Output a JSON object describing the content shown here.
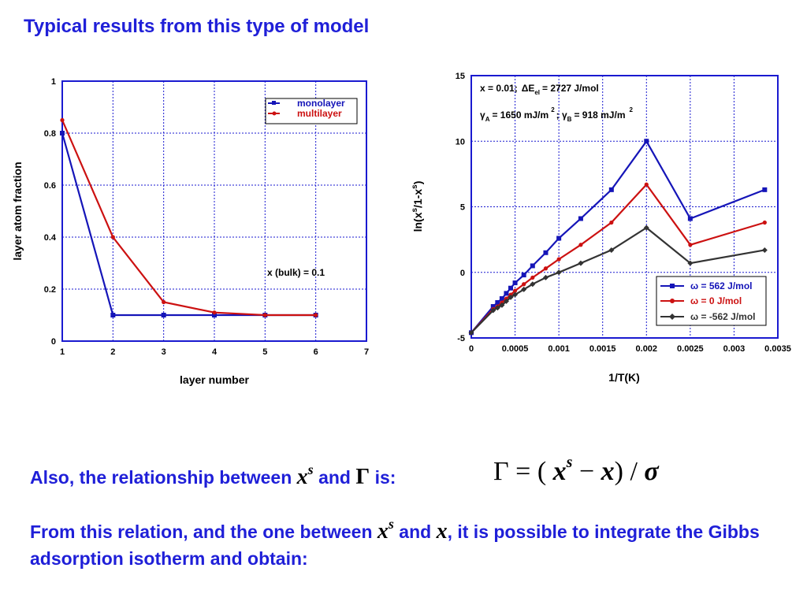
{
  "page": {
    "title": "Typical results from this type of model",
    "line1_prefix": "Also, the relationship between",
    "line1_var": "x",
    "line1_sup": "s",
    "line1_and": "and",
    "line1_gamma": "Γ",
    "line1_is": "is:",
    "equation": {
      "gamma": "Γ",
      "eq": "= (",
      "x": "x",
      "sup": "s",
      "minus": " − ",
      "x2": "x",
      "close": ")",
      "slash": " / ",
      "sigma": "σ"
    },
    "para_part1": "From this relation, and the one between",
    "para_var1": "x",
    "para_sup": "s",
    "para_and": "and",
    "para_var2": "x",
    "para_part2": ", it is possible to integrate the Gibbs adsorption isotherm and obtain:"
  },
  "chart_data": [
    {
      "type": "line",
      "xlabel": "layer number",
      "ylabel": "layer atom fraction",
      "xlim": [
        1,
        7
      ],
      "ylim": [
        0,
        1
      ],
      "xticks": [
        1,
        2,
        3,
        4,
        5,
        6,
        7
      ],
      "yticks": [
        0,
        0.2,
        0.4,
        0.6,
        0.8,
        1
      ],
      "ytick_labels": [
        "0",
        "0.2",
        "0.4",
        "0.6",
        "0.8",
        "1"
      ],
      "grid": true,
      "legend_position": "top-right",
      "annotation": "x (bulk) = 0.1",
      "series": [
        {
          "name": "monolayer",
          "color": "#1515b8",
          "marker": "square",
          "x": [
            1,
            2,
            3,
            4,
            5,
            6
          ],
          "y": [
            0.8,
            0.1,
            0.1,
            0.1,
            0.1,
            0.1
          ]
        },
        {
          "name": "multilayer",
          "color": "#cc1111",
          "marker": "circle",
          "x": [
            1,
            2,
            3,
            4,
            5,
            6
          ],
          "y": [
            0.85,
            0.4,
            0.15,
            0.11,
            0.1,
            0.1
          ]
        }
      ]
    },
    {
      "type": "line",
      "xlabel": "1/T(K)",
      "ylabel_parts": {
        "a": "ln(x",
        "b": "s",
        "c": "/1-x",
        "d": "s",
        "e": ")"
      },
      "xlim": [
        0,
        0.0035
      ],
      "ylim": [
        -5,
        15
      ],
      "xticks": [
        0,
        0.0005,
        0.001,
        0.0015,
        0.002,
        0.0025,
        0.003,
        0.0035
      ],
      "xtick_labels": [
        "0",
        "0.0005",
        "0.001",
        "0.0015",
        "0.002",
        "0.0025",
        "0.003",
        "0.0035"
      ],
      "yticks": [
        -5,
        0,
        5,
        10,
        15
      ],
      "ytick_labels": [
        "-5",
        "0",
        "5",
        "10",
        "15"
      ],
      "grid": true,
      "legend_position": "bottom-right",
      "annotation1": {
        "a": "x = 0.01;",
        "b": "ΔE",
        "c": "el",
        "d": "= 2727 J/mol"
      },
      "annotation2": {
        "a": "γ",
        "b": "A",
        "c": "= 1650 mJ/m",
        "d": "2",
        "e": "; γ",
        "f": "B",
        "g": "= 918 mJ/m",
        "h": "2"
      },
      "series": [
        {
          "name": "ω = 562 J/mol",
          "color": "#1515b8",
          "marker": "square",
          "x": [
            0,
            0.00025,
            0.0003,
            0.00035,
            0.0004,
            0.00045,
            0.0005,
            0.0006,
            0.0007,
            0.00085,
            0.001,
            0.00125,
            0.0016,
            0.002,
            0.0025,
            0.00335
          ],
          "y": [
            -4.6,
            -2.6,
            -2.3,
            -2.0,
            -1.6,
            -1.2,
            -0.8,
            -0.2,
            0.5,
            1.5,
            2.6,
            4.1,
            6.3,
            10.0,
            4.1,
            6.3
          ]
        },
        {
          "name": "ω = 0 J/mol",
          "color": "#cc1111",
          "marker": "circle",
          "x": [
            0,
            0.00025,
            0.0003,
            0.00035,
            0.0004,
            0.00045,
            0.0005,
            0.0006,
            0.0007,
            0.00085,
            0.001,
            0.00125,
            0.0016,
            0.002,
            0.0025,
            0.00335
          ],
          "y": [
            -4.6,
            -2.8,
            -2.6,
            -2.3,
            -2.0,
            -1.7,
            -1.4,
            -0.9,
            -0.4,
            0.3,
            1.0,
            2.1,
            3.8,
            6.7,
            2.1,
            3.8
          ]
        },
        {
          "name": "ω = -562 J/mol",
          "color": "#333333",
          "marker": "diamond",
          "x": [
            0,
            0.00025,
            0.0003,
            0.00035,
            0.0004,
            0.00045,
            0.0005,
            0.0006,
            0.0007,
            0.00085,
            0.001,
            0.00125,
            0.0016,
            0.002,
            0.0025,
            0.00335
          ],
          "y": [
            -4.6,
            -2.9,
            -2.7,
            -2.5,
            -2.2,
            -1.9,
            -1.7,
            -1.3,
            -0.9,
            -0.4,
            0.0,
            0.7,
            1.7,
            3.4,
            0.7,
            1.7
          ]
        }
      ]
    }
  ]
}
